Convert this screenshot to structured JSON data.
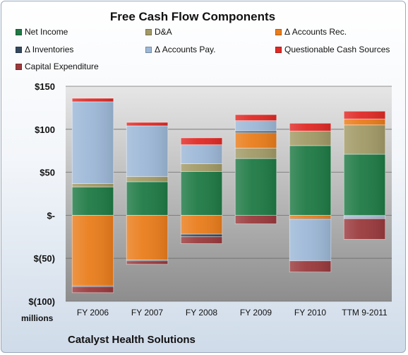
{
  "chart_data": {
    "type": "bar",
    "stacked": true,
    "title": "Free Cash Flow Components",
    "company": "Catalyst Health Solutions",
    "units_label": "millions",
    "categories": [
      "FY 2006",
      "FY 2007",
      "FY 2008",
      "FY 2009",
      "FY 2010",
      "TTM 9-2011"
    ],
    "ylim": [
      -100,
      150
    ],
    "yticks": [
      150,
      100,
      50,
      0,
      -50,
      -100
    ],
    "ytick_labels": [
      "$150",
      "$100",
      "$50",
      "$-",
      "$(50)",
      "$(100)"
    ],
    "legend_position": "top",
    "series": [
      {
        "name": "Net Income",
        "color": "#1f7a45",
        "values": [
          33,
          39,
          51,
          66,
          81,
          71
        ]
      },
      {
        "name": "D&A",
        "color": "#a29a67",
        "values": [
          4,
          6,
          9,
          12,
          17,
          34
        ]
      },
      {
        "name": "Δ Accounts Rec.",
        "color": "#ea7d1c",
        "values": [
          -82,
          -52,
          -22,
          18,
          -4,
          7
        ]
      },
      {
        "name": "Δ Inventories",
        "color": "#34495e",
        "values": [
          -1,
          -1,
          -3,
          2,
          -1,
          -1
        ]
      },
      {
        "name": "Δ Accounts Pay.",
        "color": "#9db8d7",
        "values": [
          95,
          59,
          22,
          12,
          -48,
          -3
        ]
      },
      {
        "name": "Questionable Cash Sources",
        "color": "#e02a26",
        "values": [
          4,
          4,
          8,
          7,
          9,
          9
        ]
      },
      {
        "name": "Capital Expenditure",
        "color": "#9a3a3d",
        "values": [
          -7,
          -4,
          -8,
          -10,
          -13,
          -24
        ]
      }
    ]
  }
}
